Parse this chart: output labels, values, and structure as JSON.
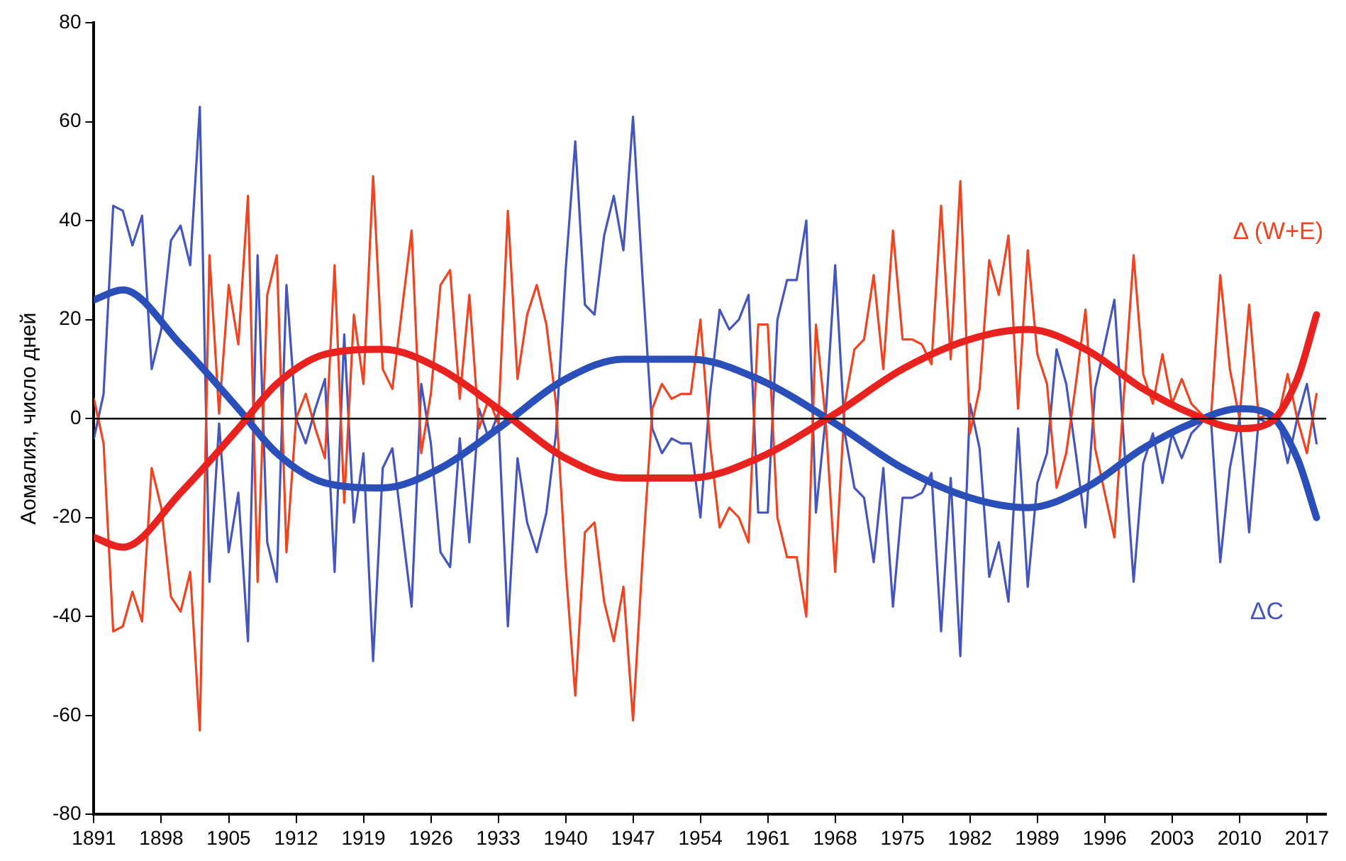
{
  "chart_data": {
    "type": "line",
    "ylabel": "Аомалия, число дней",
    "x": [
      1891,
      1892,
      1893,
      1894,
      1895,
      1896,
      1897,
      1898,
      1899,
      1900,
      1901,
      1902,
      1903,
      1904,
      1905,
      1906,
      1907,
      1908,
      1909,
      1910,
      1911,
      1912,
      1913,
      1914,
      1915,
      1916,
      1917,
      1918,
      1919,
      1920,
      1921,
      1922,
      1923,
      1924,
      1925,
      1926,
      1927,
      1928,
      1929,
      1930,
      1931,
      1932,
      1933,
      1934,
      1935,
      1936,
      1937,
      1938,
      1939,
      1940,
      1941,
      1942,
      1943,
      1944,
      1945,
      1946,
      1947,
      1948,
      1949,
      1950,
      1951,
      1952,
      1953,
      1954,
      1955,
      1956,
      1957,
      1958,
      1959,
      1960,
      1961,
      1962,
      1963,
      1964,
      1965,
      1966,
      1967,
      1968,
      1969,
      1970,
      1971,
      1972,
      1973,
      1974,
      1975,
      1976,
      1977,
      1978,
      1979,
      1980,
      1981,
      1982,
      1983,
      1984,
      1985,
      1986,
      1987,
      1988,
      1989,
      1990,
      1991,
      1992,
      1993,
      1994,
      1995,
      1996,
      1997,
      1998,
      1999,
      2000,
      2001,
      2002,
      2003,
      2004,
      2005,
      2006,
      2007,
      2008,
      2009,
      2010,
      2011,
      2012,
      2013,
      2014,
      2015,
      2016,
      2017,
      2018
    ],
    "series": [
      {
        "name": "Δ (W+E)",
        "color": "#ee4422",
        "values": [
          4,
          -5,
          -43,
          -42,
          -35,
          -41,
          -10,
          -18,
          -36,
          -39,
          -31,
          -63,
          33,
          1,
          27,
          15,
          45,
          -33,
          25,
          33,
          -27,
          0,
          5,
          -2,
          -8,
          31,
          -17,
          21,
          7,
          49,
          10,
          6,
          22,
          38,
          -7,
          5,
          27,
          30,
          4,
          25,
          -2,
          4,
          -1,
          42,
          8,
          21,
          27,
          19,
          3,
          -30,
          -56,
          -23,
          -21,
          -37,
          -45,
          -34,
          -61,
          -28,
          2,
          7,
          4,
          5,
          5,
          20,
          -5,
          -22,
          -18,
          -20,
          -25,
          19,
          19,
          -20,
          -28,
          -28,
          -40,
          19,
          0,
          -31,
          3,
          14,
          16,
          29,
          10,
          38,
          16,
          16,
          15,
          11,
          43,
          12,
          48,
          -3,
          6,
          32,
          25,
          37,
          2,
          34,
          13,
          7,
          -14,
          -7,
          7,
          22,
          -6,
          -15,
          -24,
          5,
          33,
          9,
          3,
          13,
          3,
          8,
          3,
          1,
          -1,
          29,
          10,
          0,
          23,
          0,
          1,
          0,
          9,
          0,
          -7,
          5
        ]
      },
      {
        "name": "ΔC",
        "color": "#4455bb",
        "values": [
          -4,
          5,
          43,
          42,
          35,
          41,
          10,
          18,
          36,
          39,
          31,
          63,
          -33,
          -1,
          -27,
          -15,
          -45,
          33,
          -25,
          -33,
          27,
          0,
          -5,
          2,
          8,
          -31,
          17,
          -21,
          -7,
          -49,
          -10,
          -6,
          -22,
          -38,
          7,
          -5,
          -27,
          -30,
          -4,
          -25,
          2,
          -4,
          1,
          -42,
          -8,
          -21,
          -27,
          -19,
          -3,
          30,
          56,
          23,
          21,
          37,
          45,
          34,
          61,
          28,
          -2,
          -7,
          -4,
          -5,
          -5,
          -20,
          5,
          22,
          18,
          20,
          25,
          -19,
          -19,
          20,
          28,
          28,
          40,
          -19,
          0,
          31,
          -3,
          -14,
          -16,
          -29,
          -10,
          -38,
          -16,
          -16,
          -15,
          -11,
          -43,
          -12,
          -48,
          3,
          -6,
          -32,
          -25,
          -37,
          -2,
          -34,
          -13,
          -7,
          14,
          7,
          -7,
          -22,
          6,
          15,
          24,
          -5,
          -33,
          -9,
          -3,
          -13,
          -3,
          -8,
          -3,
          -1,
          1,
          -29,
          -10,
          0,
          -23,
          0,
          -1,
          0,
          -9,
          0,
          7,
          -5
        ]
      },
      {
        "type": "line",
        "color": "#e8231f",
        "x": [
          1891,
          1894,
          1900,
          1906,
          1910,
          1915,
          1921,
          1927,
          1933,
          1940,
          1946,
          1953,
          1960,
          1968,
          1975,
          1982,
          1988,
          1994,
          2000,
          2005,
          2010,
          2013,
          2016,
          2018
        ],
        "values": [
          -24,
          -26,
          -15,
          -2,
          7,
          13,
          14,
          10,
          2,
          -8,
          -12,
          -12,
          -8,
          1,
          10,
          16,
          18,
          14,
          6,
          1,
          -2,
          -1,
          8,
          21
        ]
      },
      {
        "type": "line",
        "color": "#2b4fb8",
        "x": [
          1891,
          1894,
          1900,
          1906,
          1910,
          1915,
          1921,
          1927,
          1933,
          1940,
          1946,
          1953,
          1960,
          1968,
          1975,
          1982,
          1988,
          1994,
          2000,
          2005,
          2010,
          2013,
          2016,
          2018
        ],
        "values": [
          24,
          26,
          15,
          2,
          -7,
          -13,
          -14,
          -10,
          -2,
          8,
          12,
          12,
          8,
          -1,
          -10,
          -16,
          -18,
          -14,
          -6,
          -1,
          2,
          1,
          -8,
          -20
        ]
      }
    ],
    "xlim": [
      1891,
      2019
    ],
    "xticks": [
      1891,
      1898,
      1905,
      1912,
      1919,
      1926,
      1933,
      1940,
      1947,
      1954,
      1961,
      1968,
      1975,
      1982,
      1989,
      1996,
      2003,
      2010,
      2017
    ],
    "ylim": [
      -80,
      80
    ],
    "yticks": [
      -80,
      -60,
      -40,
      -20,
      0,
      20,
      40,
      60,
      80
    ],
    "ref_lines": [
      {
        "axis": "y",
        "value": 0,
        "color": "#000000"
      }
    ],
    "grid": false,
    "legend": false,
    "marker": "none",
    "line_style": "solid"
  }
}
